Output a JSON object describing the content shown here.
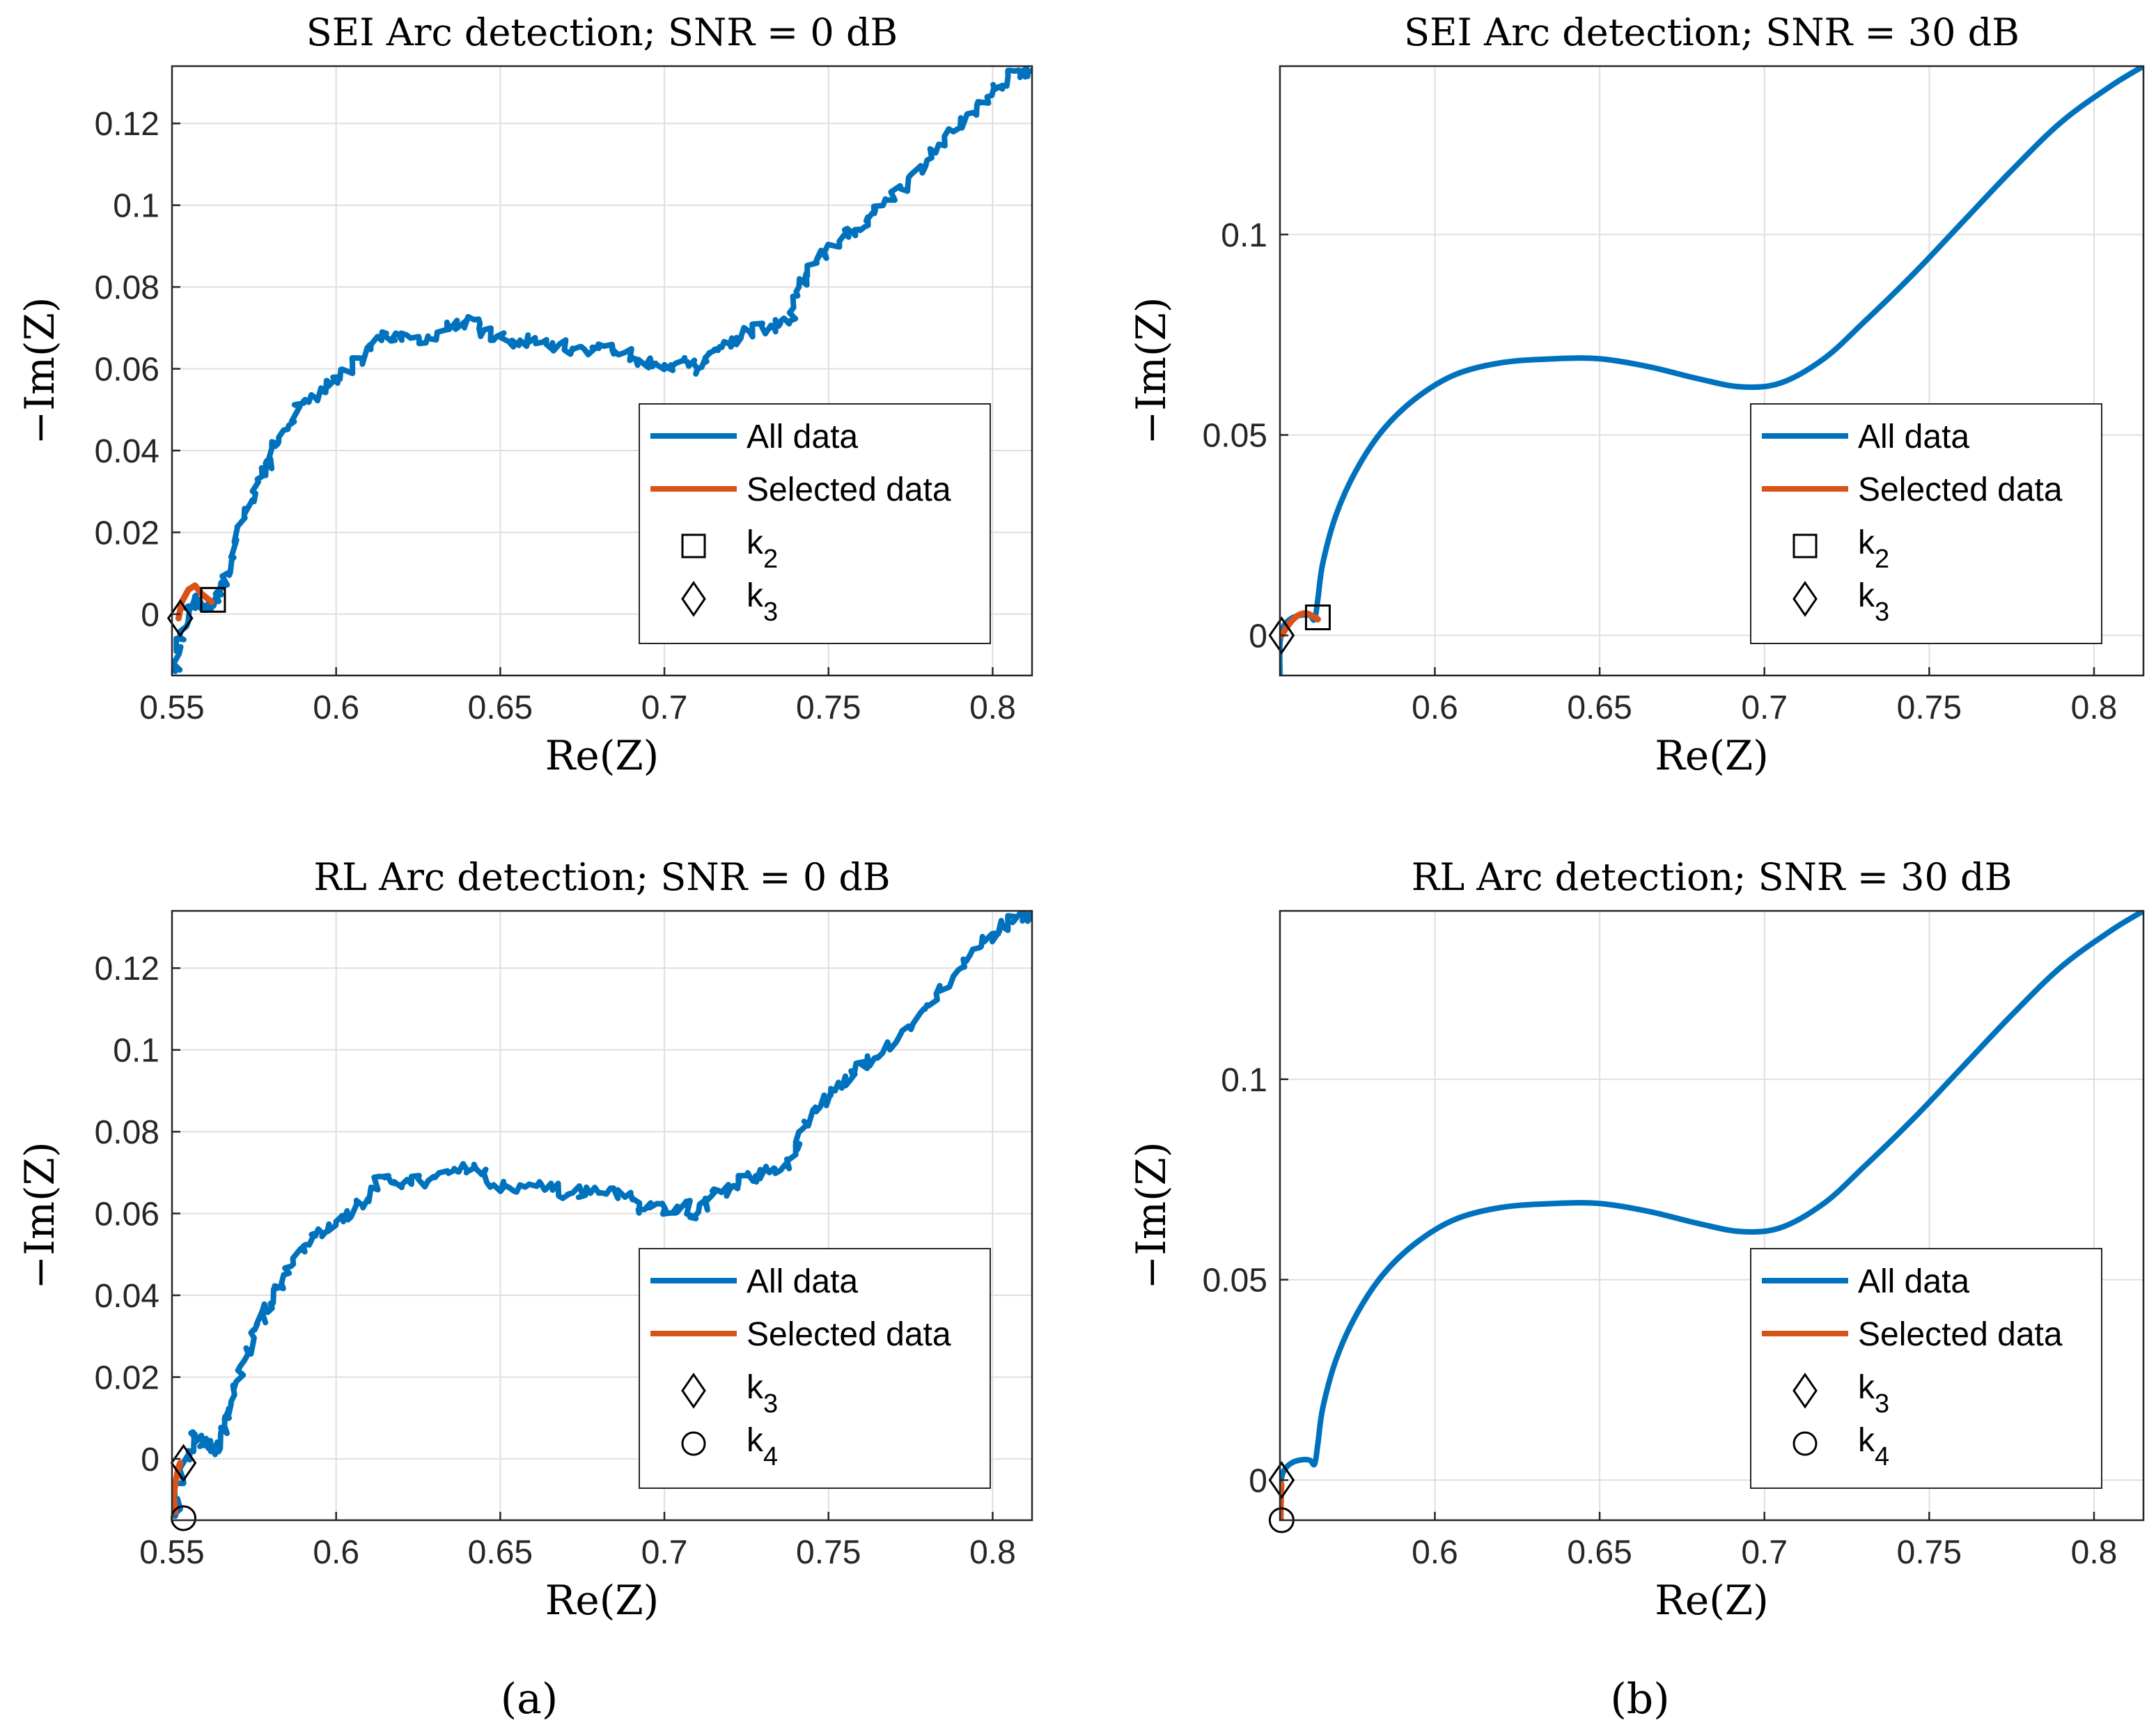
{
  "colors": {
    "all_data": "#0072BD",
    "selected_data": "#D95319",
    "marker": "#000000",
    "grid": "#DFDFDF",
    "axes": "#262626"
  },
  "captions": [
    {
      "letter": "a",
      "text": "(a)"
    },
    {
      "letter": "b",
      "text": "(b)"
    }
  ],
  "chart_data": [
    {
      "type": "line",
      "title": "SEI Arc detection; SNR = 0 dB",
      "xlabel": "Re(Z)",
      "ylabel": "−Im(Z)",
      "xlim": [
        0.55,
        0.812
      ],
      "ylim": [
        -0.015,
        0.134
      ],
      "xticks": [
        0.55,
        0.6,
        0.65,
        0.7,
        0.75,
        0.8
      ],
      "xtick_labels": [
        "0.55",
        "0.6",
        "0.65",
        "0.7",
        "0.75",
        "0.8"
      ],
      "yticks": [
        0,
        0.02,
        0.04,
        0.06,
        0.08,
        0.1,
        0.12
      ],
      "ytick_labels": [
        "0",
        "0.02",
        "0.04",
        "0.06",
        "0.08",
        "0.1",
        "0.12"
      ],
      "grid": true,
      "legend_position": "right",
      "noisy": true,
      "legend": [
        {
          "kind": "line",
          "series": "all",
          "label": "All data"
        },
        {
          "kind": "line",
          "series": "selected",
          "label": "Selected data"
        },
        {
          "kind": "square",
          "label": "k",
          "sub": "2"
        },
        {
          "kind": "diamond",
          "label": "k",
          "sub": "3"
        }
      ],
      "series": [
        {
          "name": "All data",
          "role": "all",
          "x": [
            0.551,
            0.552,
            0.555,
            0.557,
            0.56,
            0.562,
            0.564,
            0.566,
            0.568,
            0.572,
            0.576,
            0.58,
            0.584,
            0.59,
            0.596,
            0.6,
            0.608,
            0.614,
            0.62,
            0.628,
            0.636,
            0.642,
            0.648,
            0.656,
            0.664,
            0.672,
            0.68,
            0.688,
            0.694,
            0.7,
            0.706,
            0.71,
            0.714,
            0.72,
            0.726,
            0.732,
            0.738,
            0.741,
            0.746,
            0.752,
            0.758,
            0.764,
            0.772,
            0.78,
            0.788,
            0.796,
            0.802,
            0.808,
            0.812
          ],
          "y": [
            -0.014,
            -0.006,
            0.002,
            0.004,
            0.001,
            0.003,
            0.005,
            0.008,
            0.014,
            0.024,
            0.033,
            0.038,
            0.045,
            0.052,
            0.055,
            0.058,
            0.062,
            0.069,
            0.067,
            0.068,
            0.071,
            0.072,
            0.067,
            0.067,
            0.066,
            0.065,
            0.065,
            0.064,
            0.061,
            0.061,
            0.062,
            0.06,
            0.064,
            0.066,
            0.069,
            0.07,
            0.071,
            0.08,
            0.086,
            0.09,
            0.094,
            0.098,
            0.104,
            0.111,
            0.118,
            0.125,
            0.129,
            0.133,
            0.133
          ]
        },
        {
          "name": "Selected data",
          "role": "selected",
          "x": [
            0.552,
            0.553,
            0.555,
            0.557,
            0.559,
            0.562
          ],
          "y": [
            -0.001,
            0.003,
            0.006,
            0.007,
            0.005,
            0.003
          ]
        }
      ],
      "markers": [
        {
          "kind": "square",
          "x": 0.5625,
          "y": 0.0035
        },
        {
          "kind": "diamond",
          "x": 0.5525,
          "y": -0.001
        }
      ]
    },
    {
      "type": "line",
      "title": "SEI Arc detection; SNR = 30 dB",
      "xlabel": "Re(Z)",
      "ylabel": "−Im(Z)",
      "xlim": [
        0.553,
        0.815
      ],
      "ylim": [
        -0.01,
        0.142
      ],
      "xticks": [
        0.6,
        0.65,
        0.7,
        0.75,
        0.8
      ],
      "xtick_labels": [
        "0.6",
        "0.65",
        "0.7",
        "0.75",
        "0.8"
      ],
      "yticks": [
        0,
        0.05,
        0.1
      ],
      "ytick_labels": [
        "0",
        "0.05",
        "0.1"
      ],
      "grid": true,
      "legend_position": "right",
      "noisy": false,
      "legend": [
        {
          "kind": "line",
          "series": "all",
          "label": "All data"
        },
        {
          "kind": "line",
          "series": "selected",
          "label": "Selected data"
        },
        {
          "kind": "square",
          "label": "k",
          "sub": "2"
        },
        {
          "kind": "diamond",
          "label": "k",
          "sub": "3"
        }
      ],
      "series": [
        {
          "name": "All data",
          "role": "all",
          "x": [
            0.553,
            0.553,
            0.554,
            0.556,
            0.559,
            0.562,
            0.5635,
            0.5645,
            0.566,
            0.57,
            0.576,
            0.584,
            0.594,
            0.606,
            0.62,
            0.636,
            0.65,
            0.665,
            0.68,
            0.693,
            0.705,
            0.718,
            0.73,
            0.745,
            0.76,
            0.775,
            0.79,
            0.805,
            0.815
          ],
          "y": [
            -0.01,
            -0.002,
            0.002,
            0.004,
            0.005,
            0.005,
            0.004,
            0.009,
            0.018,
            0.03,
            0.041,
            0.051,
            0.059,
            0.065,
            0.068,
            0.069,
            0.069,
            0.067,
            0.064,
            0.062,
            0.063,
            0.069,
            0.078,
            0.09,
            0.103,
            0.116,
            0.128,
            0.137,
            0.142
          ]
        },
        {
          "name": "Selected data",
          "role": "selected",
          "x": [
            0.5535,
            0.555,
            0.557,
            0.559,
            0.561,
            0.563,
            0.5645
          ],
          "y": [
            0.0,
            0.002,
            0.004,
            0.0052,
            0.0055,
            0.0048,
            0.004
          ]
        }
      ],
      "markers": [
        {
          "kind": "square",
          "x": 0.5645,
          "y": 0.0045
        },
        {
          "kind": "diamond",
          "x": 0.5535,
          "y": 0.0
        }
      ]
    },
    {
      "type": "line",
      "title": "RL Arc detection; SNR = 0 dB",
      "xlabel": "Re(Z)",
      "ylabel": "−Im(Z)",
      "xlim": [
        0.55,
        0.812
      ],
      "ylim": [
        -0.015,
        0.134
      ],
      "xticks": [
        0.55,
        0.6,
        0.65,
        0.7,
        0.75,
        0.8
      ],
      "xtick_labels": [
        "0.55",
        "0.6",
        "0.65",
        "0.7",
        "0.75",
        "0.8"
      ],
      "yticks": [
        0,
        0.02,
        0.04,
        0.06,
        0.08,
        0.1,
        0.12
      ],
      "ytick_labels": [
        "0",
        "0.02",
        "0.04",
        "0.06",
        "0.08",
        "0.1",
        "0.12"
      ],
      "grid": true,
      "legend_position": "right",
      "noisy": true,
      "legend": [
        {
          "kind": "line",
          "series": "all",
          "label": "All data"
        },
        {
          "kind": "line",
          "series": "selected",
          "label": "Selected data"
        },
        {
          "kind": "diamond",
          "label": "k",
          "sub": "3"
        },
        {
          "kind": "circle",
          "label": "k",
          "sub": "4"
        }
      ],
      "series": [
        {
          "name": "All data",
          "role": "all",
          "x": [
            0.551,
            0.552,
            0.555,
            0.557,
            0.56,
            0.562,
            0.564,
            0.566,
            0.568,
            0.572,
            0.576,
            0.58,
            0.584,
            0.59,
            0.596,
            0.6,
            0.608,
            0.614,
            0.62,
            0.628,
            0.636,
            0.642,
            0.648,
            0.656,
            0.664,
            0.672,
            0.68,
            0.688,
            0.694,
            0.7,
            0.706,
            0.71,
            0.714,
            0.72,
            0.726,
            0.732,
            0.738,
            0.741,
            0.746,
            0.752,
            0.758,
            0.764,
            0.772,
            0.78,
            0.788,
            0.796,
            0.802,
            0.808,
            0.812
          ],
          "y": [
            -0.014,
            -0.006,
            0.002,
            0.006,
            0.004,
            0.003,
            0.002,
            0.008,
            0.014,
            0.024,
            0.033,
            0.038,
            0.045,
            0.052,
            0.055,
            0.058,
            0.062,
            0.069,
            0.067,
            0.068,
            0.071,
            0.072,
            0.067,
            0.067,
            0.066,
            0.065,
            0.065,
            0.064,
            0.061,
            0.061,
            0.062,
            0.06,
            0.064,
            0.066,
            0.069,
            0.07,
            0.071,
            0.08,
            0.086,
            0.09,
            0.094,
            0.098,
            0.104,
            0.111,
            0.118,
            0.125,
            0.129,
            0.133,
            0.133
          ]
        },
        {
          "name": "Selected data",
          "role": "selected",
          "x": [
            0.551,
            0.5505,
            0.551,
            0.5515,
            0.552,
            0.5525
          ],
          "y": [
            -0.013,
            -0.009,
            -0.006,
            -0.004,
            -0.002,
            -0.001
          ]
        }
      ],
      "markers": [
        {
          "kind": "diamond",
          "x": 0.5535,
          "y": -0.001
        },
        {
          "kind": "circle",
          "x": 0.5535,
          "y": -0.0145
        }
      ]
    },
    {
      "type": "line",
      "title": "RL Arc detection; SNR = 30 dB",
      "xlabel": "Re(Z)",
      "ylabel": "−Im(Z)",
      "xlim": [
        0.553,
        0.815
      ],
      "ylim": [
        -0.01,
        0.142
      ],
      "xticks": [
        0.6,
        0.65,
        0.7,
        0.75,
        0.8
      ],
      "xtick_labels": [
        "0.6",
        "0.65",
        "0.7",
        "0.75",
        "0.8"
      ],
      "yticks": [
        0,
        0.05,
        0.1
      ],
      "ytick_labels": [
        "0",
        "0.05",
        "0.1"
      ],
      "grid": true,
      "legend_position": "right",
      "noisy": false,
      "legend": [
        {
          "kind": "line",
          "series": "all",
          "label": "All data"
        },
        {
          "kind": "line",
          "series": "selected",
          "label": "Selected data"
        },
        {
          "kind": "diamond",
          "label": "k",
          "sub": "3"
        },
        {
          "kind": "circle",
          "label": "k",
          "sub": "4"
        }
      ],
      "series": [
        {
          "name": "All data",
          "role": "all",
          "x": [
            0.553,
            0.553,
            0.554,
            0.556,
            0.559,
            0.562,
            0.5635,
            0.5645,
            0.566,
            0.57,
            0.576,
            0.584,
            0.594,
            0.606,
            0.62,
            0.636,
            0.65,
            0.665,
            0.68,
            0.693,
            0.705,
            0.718,
            0.73,
            0.745,
            0.76,
            0.775,
            0.79,
            0.805,
            0.815
          ],
          "y": [
            -0.01,
            -0.002,
            0.002,
            0.004,
            0.005,
            0.005,
            0.004,
            0.009,
            0.018,
            0.03,
            0.041,
            0.051,
            0.059,
            0.065,
            0.068,
            0.069,
            0.069,
            0.067,
            0.064,
            0.062,
            0.063,
            0.069,
            0.078,
            0.09,
            0.103,
            0.116,
            0.128,
            0.137,
            0.142
          ]
        },
        {
          "name": "Selected data",
          "role": "selected",
          "x": [
            0.5532,
            0.5532,
            0.5533,
            0.5534
          ],
          "y": [
            -0.01,
            -0.007,
            -0.004,
            -0.001
          ]
        }
      ],
      "markers": [
        {
          "kind": "diamond",
          "x": 0.5535,
          "y": 0.0
        },
        {
          "kind": "circle",
          "x": 0.5535,
          "y": -0.01
        }
      ]
    }
  ]
}
